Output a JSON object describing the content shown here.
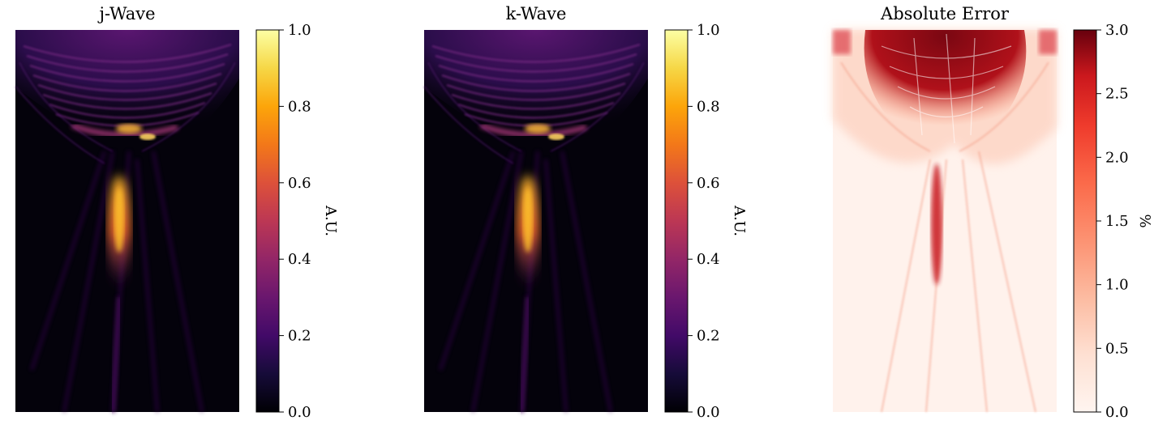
{
  "chart_data": [
    {
      "type": "heatmap",
      "title": "j-Wave",
      "colormap": "inferno",
      "colorbar": {
        "label": "A.U.",
        "range": [
          0.0,
          1.0
        ],
        "ticks": [
          "0.0",
          "0.2",
          "0.4",
          "0.6",
          "0.8",
          "1.0"
        ]
      },
      "axes_visible": false
    },
    {
      "type": "heatmap",
      "title": "k-Wave",
      "colormap": "inferno",
      "colorbar": {
        "label": "A.U.",
        "range": [
          0.0,
          1.0
        ],
        "ticks": [
          "0.0",
          "0.2",
          "0.4",
          "0.6",
          "0.8",
          "1.0"
        ]
      },
      "axes_visible": false
    },
    {
      "type": "heatmap",
      "title": "Absolute Error",
      "colormap": "Reds",
      "colorbar": {
        "label": "%",
        "range": [
          0.0,
          3.0
        ],
        "ticks": [
          "0.0",
          "0.5",
          "1.0",
          "1.5",
          "2.0",
          "2.5",
          "3.0"
        ]
      },
      "axes_visible": false
    }
  ]
}
